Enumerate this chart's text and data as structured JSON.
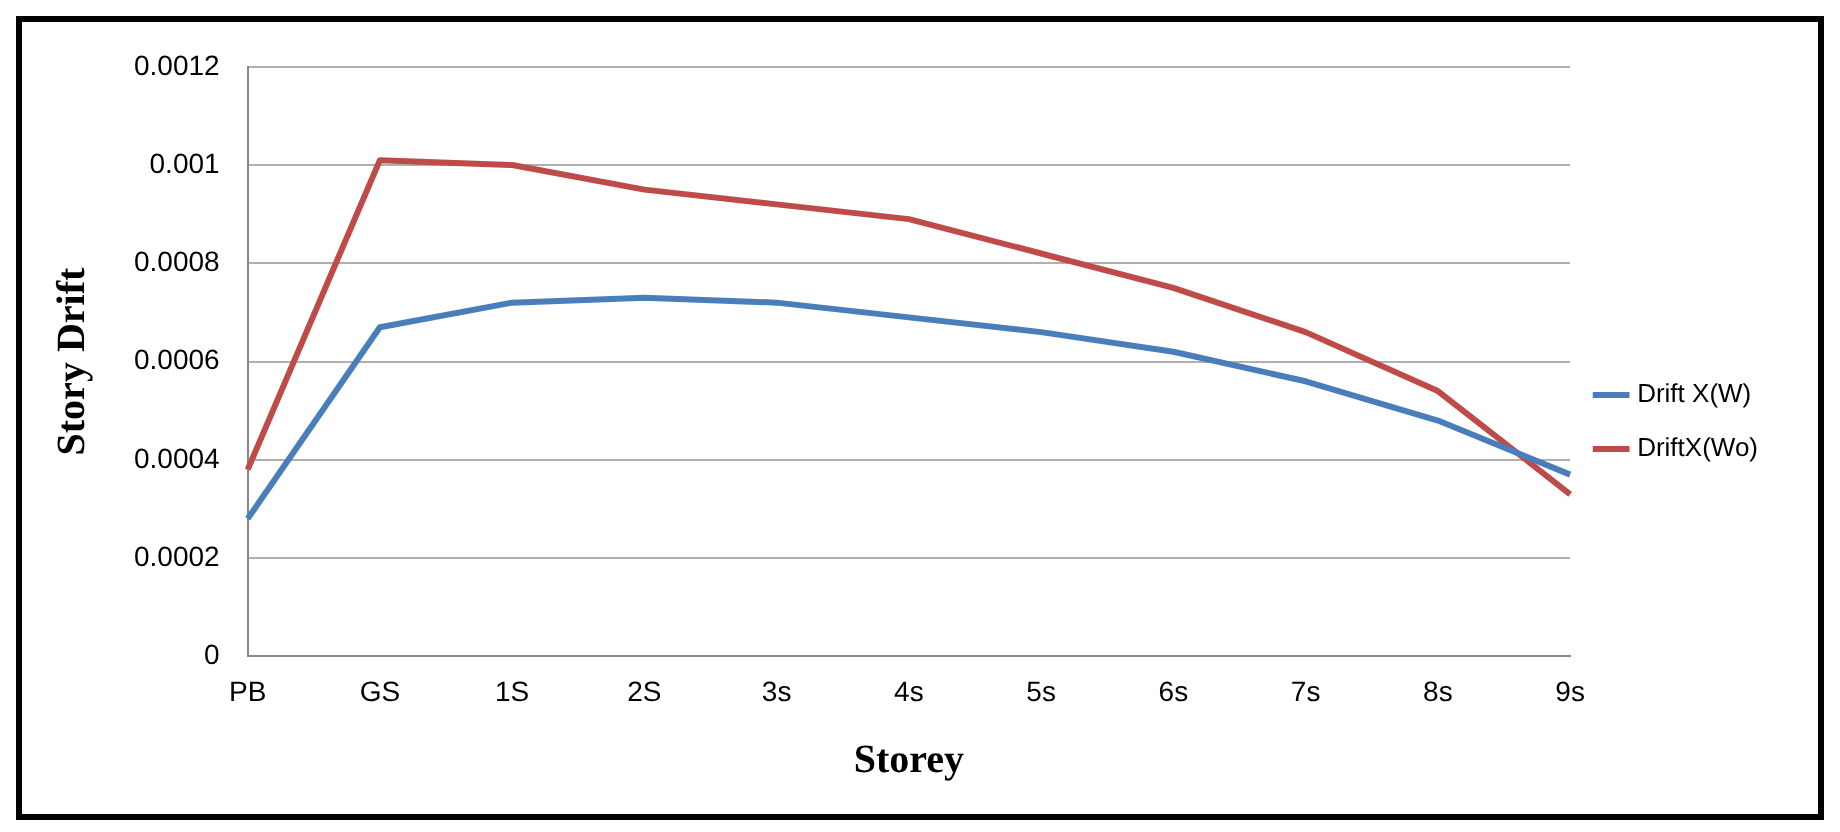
{
  "chart_data": {
    "type": "line",
    "xlabel": "Storey",
    "ylabel": "Story Drift",
    "categories": [
      "PB",
      "GS",
      "1S",
      "2S",
      "3s",
      "4s",
      "5s",
      "6s",
      "7s",
      "8s",
      "9s"
    ],
    "series": [
      {
        "name": "Drift X(W)",
        "color": "#4a7ebb",
        "values": [
          0.00028,
          0.00067,
          0.00072,
          0.00073,
          0.00072,
          0.00069,
          0.00066,
          0.00062,
          0.00056,
          0.00048,
          0.00037
        ]
      },
      {
        "name": "DriftX(Wo)",
        "color": "#be4b48",
        "values": [
          0.00038,
          0.00101,
          0.001,
          0.00095,
          0.00092,
          0.00089,
          0.00082,
          0.00075,
          0.00066,
          0.00054,
          0.00033
        ]
      }
    ],
    "ylim": [
      0,
      0.0012
    ],
    "yticks": [
      0,
      0.0002,
      0.0004,
      0.0006,
      0.0008,
      0.001,
      0.0012
    ],
    "grid": "y",
    "legend": "right",
    "marker": "none",
    "line_style": "solid"
  }
}
